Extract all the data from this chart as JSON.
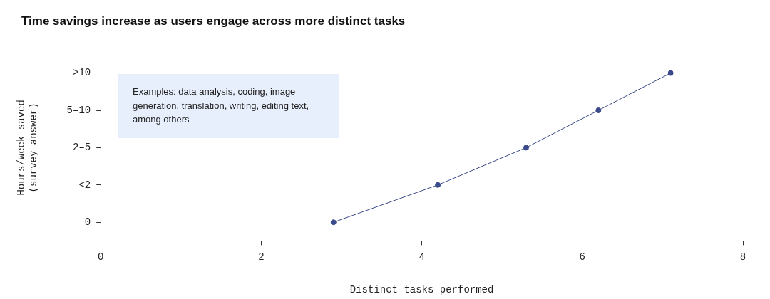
{
  "chart_data": {
    "type": "line",
    "title": "Time savings increase as users engage across more distinct tasks",
    "xlabel": "Distinct tasks performed",
    "ylabel": "Hours/week saved\n(survey answer)",
    "orientation": "horizontal",
    "categories": [
      ">10",
      "5–10",
      "2–5",
      "<2",
      "0"
    ],
    "series": [
      {
        "color": "#3b4a8a",
        "values": [
          7.1,
          6.2,
          5.3,
          4.2,
          2.9
        ]
      }
    ],
    "xlim": [
      0,
      8
    ],
    "xticks": [
      0,
      2,
      4,
      6,
      8
    ],
    "annotations": [
      "Examples: data analysis, coding, image generation, translation, writing, editing text, among others"
    ],
    "legend": false,
    "marker": "circle",
    "line_style": "solid"
  }
}
